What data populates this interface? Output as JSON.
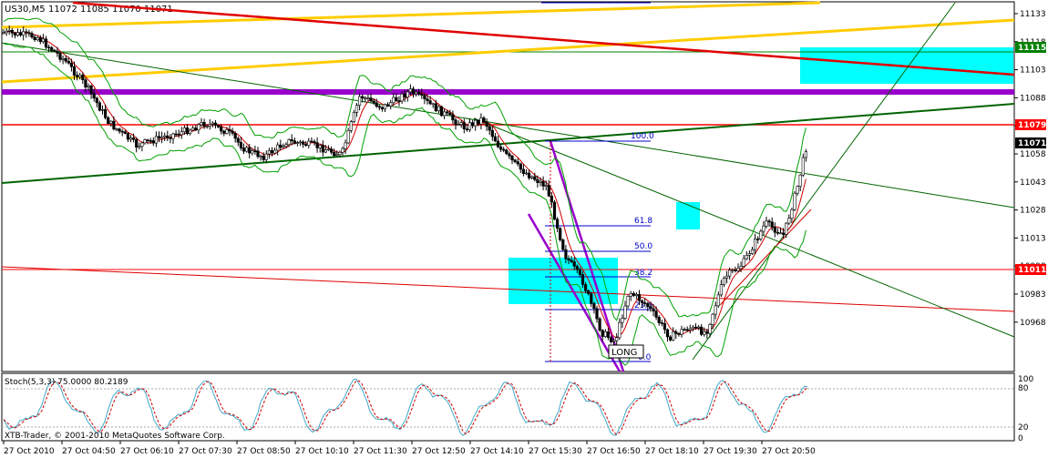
{
  "header": {
    "symbol": "US30,M5",
    "ohlc": "11072 11085 11070 11071"
  },
  "indicator": {
    "label": "Stoch(5,3,3) 75.0000 80.2189",
    "levels": [
      "100",
      "80",
      "20",
      "0"
    ]
  },
  "copyright": "XTB-Trader, © 2001-2010 MetaQuotes Software Corp.",
  "price_axis": {
    "ticks": [
      "11133",
      "11118",
      "11103",
      "11088",
      "11073",
      "11058",
      "11043",
      "11028",
      "11013",
      "10998",
      "10983",
      "10968"
    ]
  },
  "price_tags": [
    {
      "value": "11115",
      "bg": "#008000"
    },
    {
      "value": "11079",
      "bg": "#ff0000"
    },
    {
      "value": "11071",
      "bg": "#000000"
    },
    {
      "value": "11011",
      "bg": "#ff0000"
    }
  ],
  "time_axis": {
    "labels": [
      "27 Oct 2010",
      "27 Oct 04:50",
      "27 Oct 06:10",
      "27 Oct 07:30",
      "27 Oct 08:50",
      "27 Oct 10:10",
      "27 Oct 11:30",
      "27 Oct 12:50",
      "27 Oct 14:10",
      "27 Oct 15:30",
      "27 Oct 16:50",
      "27 Oct 18:10",
      "27 Oct 19:30",
      "27 Oct 20:50"
    ]
  },
  "fibonacci": {
    "levels": [
      "100.0",
      "61.8",
      "50.0",
      "38.2",
      "23.6",
      "0.0"
    ]
  },
  "annotation": {
    "long_label": "LONG"
  },
  "colors": {
    "bull": "#000000",
    "bear": "#000000",
    "ma_red": "#d00000",
    "bollinger": "#00a000",
    "stoch_main": "#40a8c8",
    "stoch_signal": "#d00000",
    "cyan": "#00ffff",
    "purple": "#9900cc",
    "orange": "#ffcc00"
  }
}
